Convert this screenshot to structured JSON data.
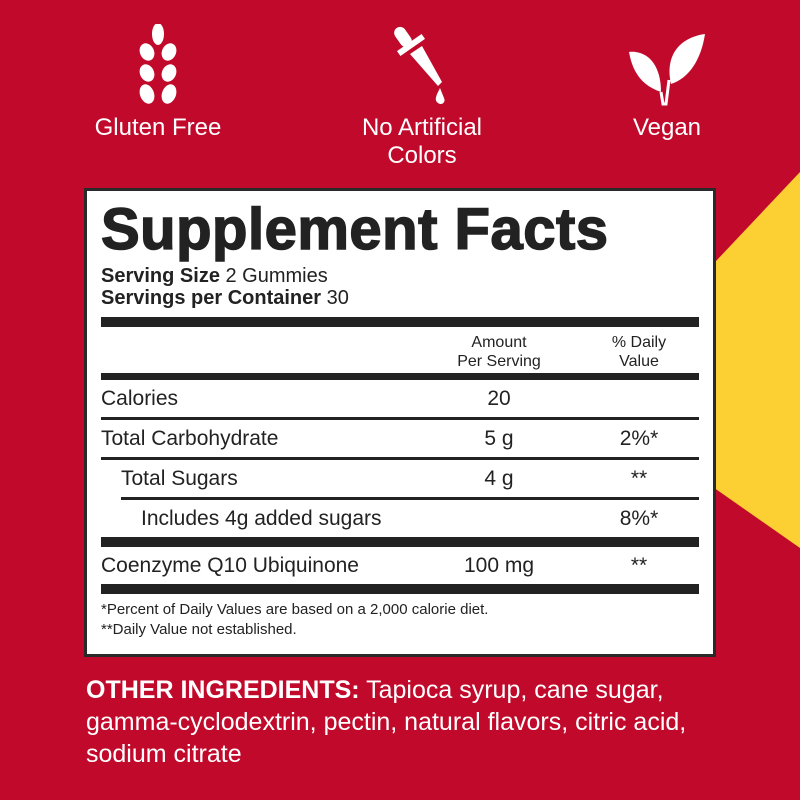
{
  "colors": {
    "background": "#c10a2b",
    "accent": "#fccf33",
    "text": "#222222"
  },
  "badges": [
    {
      "icon": "wheat-icon",
      "label": "Gluten Free"
    },
    {
      "icon": "dropper-icon",
      "label_line1": "No Artificial",
      "label_line2": "Colors"
    },
    {
      "icon": "leaf-icon",
      "label": "Vegan"
    }
  ],
  "facts": {
    "title": "Supplement Facts",
    "serving_size_label": "Serving Size",
    "serving_size": "2 Gummies",
    "servings_label": "Servings per Container",
    "servings": "30",
    "col_amount_1": "Amount",
    "col_amount_2": "Per Serving",
    "col_dv_1": "% Daily",
    "col_dv_2": "Value",
    "rows": [
      {
        "name": "Calories",
        "amount": "20",
        "dv": ""
      },
      {
        "name": "Total Carbohydrate",
        "amount": "5 g",
        "dv": "2%*"
      },
      {
        "name": "Total Sugars",
        "amount": "4 g",
        "dv": "**"
      },
      {
        "name": "Includes 4g added sugars",
        "amount": "",
        "dv": "8%*"
      },
      {
        "name": "Coenzyme Q10 Ubiquinone",
        "amount": "100 mg",
        "dv": "**"
      }
    ],
    "footnote1": "*Percent of Daily Values are based on a 2,000 calorie diet.",
    "footnote2": "**Daily Value not established."
  },
  "other_ingredients": {
    "label": "OTHER INGREDIENTS:",
    "text": " Tapioca syrup, cane sugar, gamma-cyclodextrin, pectin, natural flavors, citric acid, sodium citrate"
  }
}
